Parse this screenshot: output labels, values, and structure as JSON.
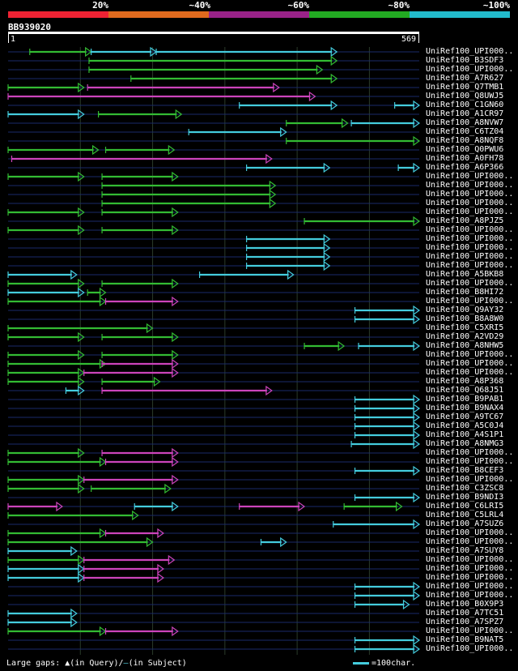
{
  "colors": {
    "background": "#000000",
    "row_line": "#1a2a6a",
    "grid_line": "#2a3a2a",
    "scale_red": "#ee2233",
    "scale_orange": "#e06a1e",
    "scale_purple": "#992288",
    "scale_green": "#22aa22",
    "scale_cyan": "#22bbcc",
    "hit_cyan": "#44ccdd",
    "hit_green": "#33bb33",
    "hit_magenta": "#cc44bb",
    "hit_white": "#ffffff"
  },
  "scale": {
    "segments": [
      {
        "label": "20%",
        "color": "#ee2233"
      },
      {
        "label": "~40%",
        "color": "#e06a1e"
      },
      {
        "label": "~60%",
        "color": "#992288"
      },
      {
        "label": "~80%",
        "color": "#22aa22"
      },
      {
        "label": "~100%",
        "color": "#22bbcc"
      }
    ]
  },
  "query": {
    "id": "BB939020",
    "start": "1",
    "end": "569",
    "length": 569
  },
  "hits": [
    {
      "label": "UniRef100_UPI000..",
      "segs": [
        [
          30,
          115,
          "g"
        ],
        [
          115,
          205,
          "c"
        ],
        [
          205,
          455,
          "c"
        ]
      ]
    },
    {
      "label": "UniRef100_B3SDF3",
      "segs": [
        [
          112,
          455,
          "g"
        ]
      ]
    },
    {
      "label": "UniRef100_UPI000..",
      "segs": [
        [
          112,
          435,
          "g"
        ]
      ]
    },
    {
      "label": "UniRef100_A7R627",
      "segs": [
        [
          170,
          455,
          "g"
        ]
      ]
    },
    {
      "label": "UniRef100_Q7TMB1",
      "segs": [
        [
          0,
          105,
          "g"
        ],
        [
          110,
          375,
          "m"
        ]
      ]
    },
    {
      "label": "UniRef100_Q8UWJ5",
      "segs": [
        [
          0,
          425,
          "m"
        ]
      ]
    },
    {
      "label": "UniRef100_C1GN60",
      "segs": [
        [
          320,
          455,
          "c"
        ],
        [
          535,
          569,
          "c"
        ]
      ]
    },
    {
      "label": "UniRef100_A1CR97",
      "segs": [
        [
          0,
          105,
          "c"
        ],
        [
          125,
          240,
          "g"
        ]
      ]
    },
    {
      "label": "UniRef100_A8NVW7",
      "segs": [
        [
          385,
          470,
          "g"
        ],
        [
          475,
          569,
          "c"
        ]
      ]
    },
    {
      "label": "UniRef100_C6TZ04",
      "segs": [
        [
          250,
          385,
          "c"
        ]
      ]
    },
    {
      "label": "UniRef100_A8NQF8",
      "segs": [
        [
          385,
          569,
          "g"
        ]
      ]
    },
    {
      "label": "UniRef100_Q0PWU6",
      "segs": [
        [
          0,
          125,
          "g"
        ],
        [
          135,
          230,
          "g"
        ]
      ]
    },
    {
      "label": "UniRef100_A0FH78",
      "segs": [
        [
          5,
          365,
          "m"
        ]
      ]
    },
    {
      "label": "UniRef100_A6P366",
      "segs": [
        [
          330,
          445,
          "c"
        ],
        [
          540,
          569,
          "c"
        ]
      ]
    },
    {
      "label": "UniRef100_UPI000..",
      "segs": [
        [
          0,
          105,
          "g"
        ],
        [
          130,
          235,
          "g"
        ]
      ]
    },
    {
      "label": "UniRef100_UPI000..",
      "segs": [
        [
          130,
          370,
          "g"
        ]
      ]
    },
    {
      "label": "UniRef100_UPI000..",
      "segs": [
        [
          130,
          370,
          "g"
        ]
      ]
    },
    {
      "label": "UniRef100_UPI000..",
      "segs": [
        [
          130,
          370,
          "g"
        ]
      ]
    },
    {
      "label": "UniRef100_UPI000..",
      "segs": [
        [
          0,
          105,
          "g"
        ],
        [
          130,
          235,
          "g"
        ]
      ]
    },
    {
      "label": "UniRef100_A8PJZ5",
      "segs": [
        [
          410,
          569,
          "g"
        ]
      ]
    },
    {
      "label": "UniRef100_UPI000..",
      "segs": [
        [
          0,
          105,
          "g"
        ],
        [
          130,
          235,
          "g"
        ]
      ]
    },
    {
      "label": "UniRef100_UPI000..",
      "segs": [
        [
          330,
          445,
          "c"
        ]
      ]
    },
    {
      "label": "UniRef100_UPI000..",
      "segs": [
        [
          330,
          445,
          "c"
        ]
      ]
    },
    {
      "label": "UniRef100_UPI000..",
      "segs": [
        [
          330,
          445,
          "c"
        ]
      ]
    },
    {
      "label": "UniRef100_UPI000..",
      "segs": [
        [
          330,
          445,
          "c"
        ]
      ]
    },
    {
      "label": "UniRef100_A5BKB8",
      "segs": [
        [
          0,
          95,
          "c"
        ],
        [
          265,
          395,
          "c"
        ]
      ]
    },
    {
      "label": "UniRef100_UPI000..",
      "segs": [
        [
          0,
          105,
          "g"
        ],
        [
          130,
          235,
          "g"
        ]
      ]
    },
    {
      "label": "UniRef100_B8HI72",
      "segs": [
        [
          0,
          105,
          "c"
        ],
        [
          110,
          135,
          "g"
        ]
      ]
    },
    {
      "label": "UniRef100_UPI000..",
      "segs": [
        [
          0,
          135,
          "g"
        ],
        [
          135,
          235,
          "m"
        ]
      ]
    },
    {
      "label": "UniRef100_Q9AY32",
      "segs": [
        [
          480,
          569,
          "c"
        ]
      ]
    },
    {
      "label": "UniRef100_B8A8W0",
      "segs": [
        [
          480,
          569,
          "c"
        ]
      ]
    },
    {
      "label": "UniRef100_C5XRI5",
      "segs": [
        [
          0,
          200,
          "g"
        ]
      ]
    },
    {
      "label": "UniRef100_A2VD29",
      "segs": [
        [
          0,
          105,
          "g"
        ],
        [
          130,
          235,
          "g"
        ]
      ]
    },
    {
      "label": "UniRef100_A8NHW5",
      "segs": [
        [
          410,
          465,
          "g"
        ],
        [
          485,
          569,
          "c"
        ]
      ]
    },
    {
      "label": "UniRef100_UPI000..",
      "segs": [
        [
          0,
          105,
          "g"
        ],
        [
          130,
          235,
          "g"
        ]
      ]
    },
    {
      "label": "UniRef100_UPI000..",
      "segs": [
        [
          0,
          135,
          "g"
        ],
        [
          130,
          235,
          "m"
        ]
      ]
    },
    {
      "label": "UniRef100_UPI000..",
      "segs": [
        [
          0,
          105,
          "g"
        ],
        [
          105,
          235,
          "m"
        ]
      ]
    },
    {
      "label": "UniRef100_A8P368",
      "segs": [
        [
          0,
          105,
          "g"
        ],
        [
          130,
          210,
          "g"
        ]
      ]
    },
    {
      "label": "UniRef100_Q68J51",
      "segs": [
        [
          80,
          105,
          "c"
        ],
        [
          130,
          365,
          "m"
        ]
      ]
    },
    {
      "label": "UniRef100_B9PAB1",
      "segs": [
        [
          480,
          569,
          "c"
        ]
      ]
    },
    {
      "label": "UniRef100_B9NAX4",
      "segs": [
        [
          480,
          569,
          "c"
        ]
      ]
    },
    {
      "label": "UniRef100_A9TC67",
      "segs": [
        [
          480,
          569,
          "c"
        ]
      ]
    },
    {
      "label": "UniRef100_A5C0J4",
      "segs": [
        [
          480,
          569,
          "c"
        ]
      ]
    },
    {
      "label": "UniRef100_A4S1P1",
      "segs": [
        [
          480,
          569,
          "c"
        ]
      ]
    },
    {
      "label": "UniRef100_A8NMG3",
      "segs": [
        [
          475,
          569,
          "c"
        ]
      ]
    },
    {
      "label": "UniRef100_UPI000..",
      "segs": [
        [
          0,
          105,
          "g"
        ],
        [
          130,
          235,
          "m"
        ]
      ]
    },
    {
      "label": "UniRef100_UPI000..",
      "segs": [
        [
          0,
          135,
          "g"
        ],
        [
          135,
          235,
          "m"
        ]
      ]
    },
    {
      "label": "UniRef100_B8CEF3",
      "segs": [
        [
          480,
          569,
          "c"
        ]
      ]
    },
    {
      "label": "UniRef100_UPI000..",
      "segs": [
        [
          0,
          105,
          "g"
        ],
        [
          105,
          235,
          "m"
        ]
      ]
    },
    {
      "label": "UniRef100_C3ZSC8",
      "segs": [
        [
          0,
          105,
          "g"
        ],
        [
          115,
          225,
          "g"
        ]
      ]
    },
    {
      "label": "UniRef100_B9NDI3",
      "segs": [
        [
          480,
          569,
          "c"
        ]
      ]
    },
    {
      "label": "UniRef100_C6LRI5",
      "segs": [
        [
          0,
          75,
          "m"
        ],
        [
          175,
          235,
          "c"
        ],
        [
          320,
          410,
          "m"
        ],
        [
          465,
          545,
          "g"
        ]
      ]
    },
    {
      "label": "UniRef100_C5LRL4",
      "segs": [
        [
          0,
          180,
          "g"
        ]
      ]
    },
    {
      "label": "UniRef100_A7SUZ6",
      "segs": [
        [
          450,
          569,
          "c"
        ]
      ]
    },
    {
      "label": "UniRef100_UPI000..",
      "segs": [
        [
          0,
          135,
          "g"
        ],
        [
          135,
          215,
          "m"
        ]
      ]
    },
    {
      "label": "UniRef100_UPI000..",
      "segs": [
        [
          0,
          200,
          "g"
        ],
        [
          350,
          385,
          "c"
        ]
      ]
    },
    {
      "label": "UniRef100_A7SUY8",
      "segs": [
        [
          0,
          95,
          "c"
        ]
      ]
    },
    {
      "label": "UniRef100_UPI000..",
      "segs": [
        [
          0,
          105,
          "g"
        ],
        [
          105,
          230,
          "m"
        ]
      ]
    },
    {
      "label": "UniRef100_UPI000..",
      "segs": [
        [
          0,
          105,
          "c"
        ],
        [
          105,
          215,
          "m"
        ]
      ]
    },
    {
      "label": "UniRef100_UPI000..",
      "segs": [
        [
          0,
          105,
          "c"
        ],
        [
          105,
          215,
          "m"
        ]
      ]
    },
    {
      "label": "UniRef100_UPI000..",
      "segs": [
        [
          480,
          569,
          "c"
        ]
      ]
    },
    {
      "label": "UniRef100_UPI000..",
      "segs": [
        [
          480,
          569,
          "c"
        ]
      ]
    },
    {
      "label": "UniRef100_B0X9P3",
      "segs": [
        [
          480,
          555,
          "c"
        ]
      ]
    },
    {
      "label": "UniRef100_A7TC51",
      "segs": [
        [
          0,
          95,
          "c"
        ]
      ]
    },
    {
      "label": "UniRef100_A7SPZ7",
      "segs": [
        [
          0,
          95,
          "c"
        ]
      ]
    },
    {
      "label": "UniRef100_UPI000..",
      "segs": [
        [
          0,
          135,
          "g"
        ],
        [
          135,
          235,
          "m"
        ]
      ]
    },
    {
      "label": "UniRef100_B9NAT5",
      "segs": [
        [
          480,
          569,
          "c"
        ]
      ]
    },
    {
      "label": "UniRef100_UPI000..",
      "segs": [
        [
          480,
          569,
          "c"
        ]
      ]
    }
  ],
  "legend": {
    "prefix": "Large gaps:",
    "query_gap_symbol": "▲",
    "query_gap_text": "(in Query)/",
    "subject_gap_symbol": "–",
    "subject_gap_text": "(in Subject)",
    "scale_text": "=100char."
  }
}
